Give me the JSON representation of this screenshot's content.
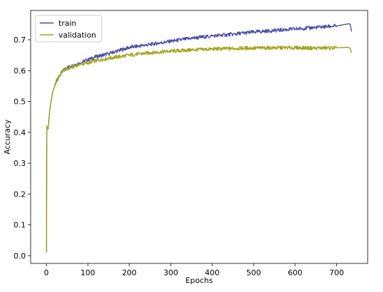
{
  "chart_data": {
    "type": "line",
    "title": "",
    "xlabel": "Epochs",
    "ylabel": "Accuracy",
    "xlim": [
      -38,
      775
    ],
    "ylim": [
      -0.025,
      0.795
    ],
    "xticks": [
      0,
      100,
      200,
      300,
      400,
      500,
      600,
      700
    ],
    "yticks": [
      0.0,
      0.1,
      0.2,
      0.3,
      0.4,
      0.5,
      0.6,
      0.7
    ],
    "grid": false,
    "legend_position": "top-left",
    "series": [
      {
        "name": "train",
        "color": "#4a4fa8",
        "x": [
          0,
          1,
          2,
          4,
          6,
          8,
          10,
          15,
          20,
          25,
          30,
          40,
          50,
          60,
          70,
          80,
          100,
          120,
          150,
          200,
          250,
          300,
          350,
          400,
          450,
          500,
          550,
          600,
          650,
          700,
          730,
          733,
          736
        ],
        "y": [
          0.01,
          0.42,
          0.41,
          0.41,
          0.44,
          0.47,
          0.49,
          0.53,
          0.55,
          0.57,
          0.58,
          0.6,
          0.61,
          0.615,
          0.62,
          0.625,
          0.635,
          0.645,
          0.655,
          0.675,
          0.685,
          0.695,
          0.705,
          0.712,
          0.718,
          0.725,
          0.73,
          0.735,
          0.74,
          0.745,
          0.752,
          0.75,
          0.727
        ]
      },
      {
        "name": "validation",
        "color": "#a1a416",
        "x": [
          0,
          1,
          2,
          4,
          6,
          8,
          10,
          15,
          20,
          25,
          30,
          40,
          50,
          60,
          70,
          80,
          100,
          120,
          150,
          200,
          250,
          300,
          350,
          400,
          450,
          500,
          550,
          600,
          650,
          700,
          730,
          733,
          736
        ],
        "y": [
          0.01,
          0.42,
          0.41,
          0.41,
          0.44,
          0.47,
          0.49,
          0.53,
          0.55,
          0.57,
          0.58,
          0.6,
          0.605,
          0.61,
          0.615,
          0.62,
          0.625,
          0.632,
          0.64,
          0.65,
          0.658,
          0.663,
          0.667,
          0.67,
          0.672,
          0.673,
          0.674,
          0.674,
          0.673,
          0.674,
          0.675,
          0.671,
          0.658
        ]
      }
    ]
  }
}
